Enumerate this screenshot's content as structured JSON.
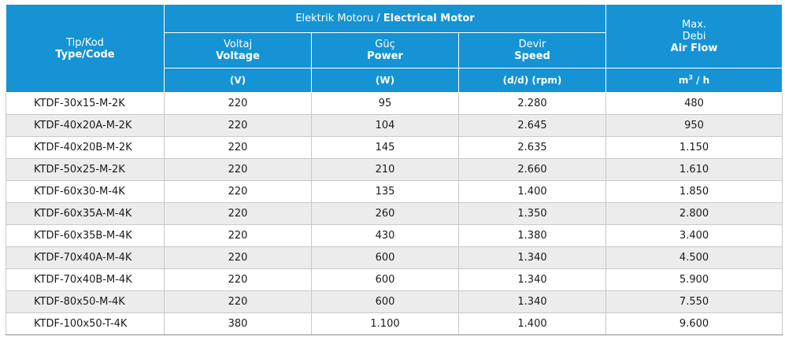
{
  "header": {
    "type_code_tr": "Tip/Kod",
    "type_code_en": "Type/Code",
    "motor_tr": "Elektrik Motoru /",
    "motor_en": "Electrical Motor",
    "voltage_tr": "Voltaj",
    "voltage_en": "Voltage",
    "power_tr": "Güç",
    "power_en": "Power",
    "speed_tr": "Devir",
    "speed_en": "Speed",
    "airflow_l1": "Max.",
    "airflow_tr": "Debi",
    "airflow_en": "Air Flow",
    "unit_voltage": "(V)",
    "unit_power": "(W)",
    "unit_speed": "(d/d) (rpm)",
    "unit_airflow_base": "m",
    "unit_airflow_sup": "3",
    "unit_airflow_rest": " / h"
  },
  "rows": [
    {
      "code": "KTDF-30x15-M-2K",
      "voltage": "220",
      "power": "95",
      "speed": "2.280",
      "airflow": "480"
    },
    {
      "code": "KTDF-40x20A-M-2K",
      "voltage": "220",
      "power": "104",
      "speed": "2.645",
      "airflow": "950"
    },
    {
      "code": "KTDF-40x20B-M-2K",
      "voltage": "220",
      "power": "145",
      "speed": "2.635",
      "airflow": "1.150"
    },
    {
      "code": "KTDF-50x25-M-2K",
      "voltage": "220",
      "power": "210",
      "speed": "2.660",
      "airflow": "1.610"
    },
    {
      "code": "KTDF-60x30-M-4K",
      "voltage": "220",
      "power": "135",
      "speed": "1.400",
      "airflow": "1.850"
    },
    {
      "code": "KTDF-60x35A-M-4K",
      "voltage": "220",
      "power": "260",
      "speed": "1.350",
      "airflow": "2.800"
    },
    {
      "code": "KTDF-60x35B-M-4K",
      "voltage": "220",
      "power": "430",
      "speed": "1.380",
      "airflow": "3.400"
    },
    {
      "code": "KTDF-70x40A-M-4K",
      "voltage": "220",
      "power": "600",
      "speed": "1.340",
      "airflow": "4.500"
    },
    {
      "code": "KTDF-70x40B-M-4K",
      "voltage": "220",
      "power": "600",
      "speed": "1.340",
      "airflow": "5.900"
    },
    {
      "code": "KTDF-80x50-M-4K",
      "voltage": "220",
      "power": "600",
      "speed": "1.340",
      "airflow": "7.550"
    },
    {
      "code": "KTDF-100x50-T-4K",
      "voltage": "380",
      "power": "1.100",
      "speed": "1.400",
      "airflow": "9.600"
    }
  ],
  "colors": {
    "header_bg": "#1593d4",
    "alt_row_bg": "#ececec"
  }
}
